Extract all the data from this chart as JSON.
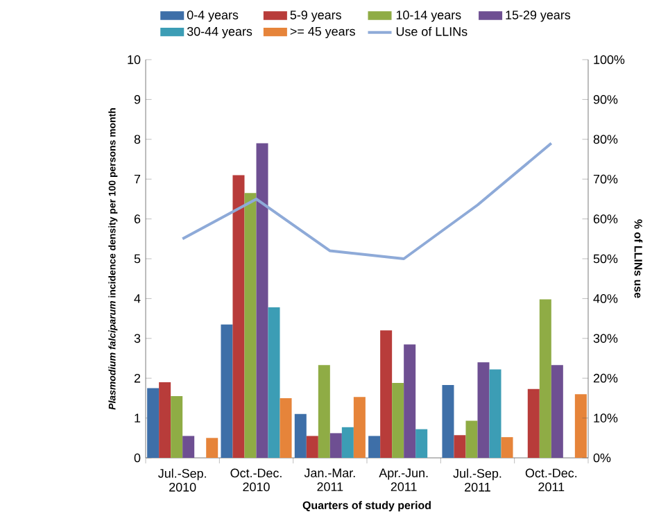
{
  "chart_data": {
    "type": "bar",
    "xlabel": "Quarters of study period",
    "ylabel": "*Plasmodium falciparum* incidence density per 100 persons month",
    "y2label": "% of LLINs use",
    "categories": [
      "Jul.-Sep. 2010",
      "Oct.-Dec. 2010",
      "Jan.-Mar. 2011",
      "Apr.-Jun. 2011",
      "Jul.-Sep. 2011",
      "Oct.-Dec. 2011"
    ],
    "series": [
      {
        "name": "0-4 years",
        "color": "#3e6fa8",
        "values": [
          1.75,
          3.35,
          1.1,
          0.55,
          1.83,
          null
        ]
      },
      {
        "name": "5-9 years",
        "color": "#b83c3a",
        "values": [
          1.9,
          7.1,
          0.55,
          3.2,
          0.57,
          1.73
        ]
      },
      {
        "name": "10-14 years",
        "color": "#8fac45",
        "values": [
          1.55,
          6.65,
          2.33,
          1.88,
          0.93,
          3.98
        ]
      },
      {
        "name": "15-29 years",
        "color": "#6e4f92",
        "values": [
          0.55,
          7.9,
          0.62,
          2.85,
          2.4,
          2.33
        ]
      },
      {
        "name": "30-44 years",
        "color": "#3c9db5",
        "values": [
          null,
          3.78,
          0.77,
          0.72,
          2.22,
          null
        ]
      },
      {
        "name": ">= 45 years",
        "color": "#e6843a",
        "values": [
          0.5,
          1.5,
          1.53,
          null,
          0.52,
          1.6
        ]
      },
      {
        "name": "Use of LLINs",
        "color": "#8eaad8",
        "type": "line",
        "axis": "y2",
        "values": [
          55,
          65,
          52,
          50,
          63.5,
          79
        ]
      }
    ],
    "ylim": [
      0,
      10
    ],
    "yticks": [
      0,
      1,
      2,
      3,
      4,
      5,
      6,
      7,
      8,
      9,
      10
    ],
    "y2lim": [
      0,
      100
    ],
    "y2ticks": [
      {
        "value": 0,
        "label": "0%"
      },
      {
        "value": 10,
        "label": "10%"
      },
      {
        "value": 20,
        "label": "20%"
      },
      {
        "value": 30,
        "label": "30%"
      },
      {
        "value": 40,
        "label": "40%"
      },
      {
        "value": 50,
        "label": "50%"
      },
      {
        "value": 60,
        "label": "60%"
      },
      {
        "value": 70,
        "label": "70%"
      },
      {
        "value": 80,
        "label": "80%"
      },
      {
        "value": 90,
        "label": "90%"
      },
      {
        "value": 100,
        "label": "100%"
      }
    ],
    "legend": "top",
    "grid": false
  }
}
